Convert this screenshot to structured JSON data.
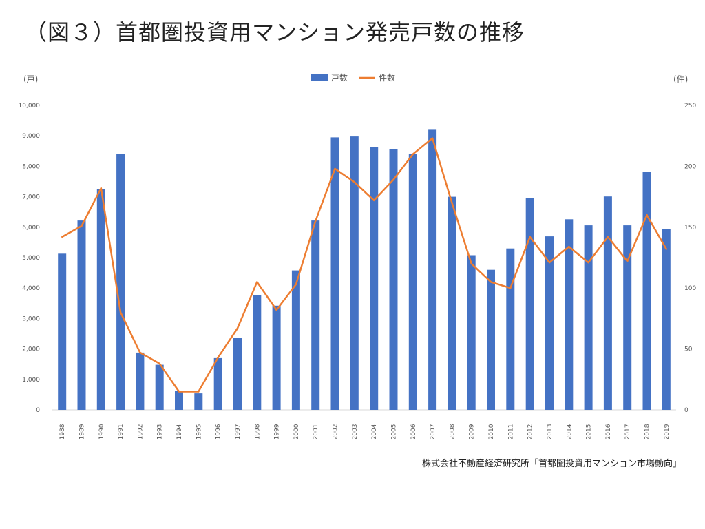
{
  "title": "（図３）首都圏投資用マンション発売戸数の推移",
  "source": "株式会社不動産経済研究所「首都圏投資用マンション市場動向」",
  "colors": {
    "bar": "#4472C4",
    "line": "#ED7D31",
    "axis": "#D9D9D9",
    "text": "#595959"
  },
  "chart_data": {
    "type": "bar",
    "title": "",
    "ylabel_left": "(戸)",
    "ylabel_right": "(件)",
    "ylim_left": [
      0,
      10000
    ],
    "ylim_right": [
      0,
      250
    ],
    "yticks_left": [
      "0",
      "1,000",
      "2,000",
      "3,000",
      "4,000",
      "5,000",
      "6,000",
      "7,000",
      "8,000",
      "9,000",
      "10,000"
    ],
    "yticks_right": [
      "0",
      "50",
      "100",
      "150",
      "200",
      "250"
    ],
    "legend_position": "top-center",
    "grid": false,
    "categories": [
      "1988",
      "1989",
      "1990",
      "1991",
      "1992",
      "1993",
      "1994",
      "1995",
      "1996",
      "1997",
      "1998",
      "1999",
      "2000",
      "2001",
      "2002",
      "2003",
      "2004",
      "2005",
      "2006",
      "2007",
      "2008",
      "2009",
      "2010",
      "2011",
      "2012",
      "2013",
      "2014",
      "2015",
      "2016",
      "2017",
      "2018",
      "2019"
    ],
    "series": [
      {
        "name": "戸数",
        "type": "bar",
        "axis": "left",
        "values": [
          5130,
          6220,
          7250,
          8400,
          1880,
          1480,
          620,
          540,
          1700,
          2360,
          3760,
          3420,
          4580,
          6220,
          8950,
          8980,
          8620,
          8560,
          8400,
          9200,
          7000,
          5080,
          4600,
          5300,
          6950,
          5700,
          6260,
          6060,
          7010,
          6060,
          7820,
          5950
        ]
      },
      {
        "name": "件数",
        "type": "line",
        "axis": "right",
        "values": [
          142,
          151,
          182,
          80,
          47,
          38,
          15,
          15,
          43,
          67,
          105,
          82,
          103,
          155,
          198,
          187,
          172,
          189,
          210,
          223,
          170,
          120,
          105,
          100,
          142,
          121,
          134,
          121,
          142,
          122,
          160,
          132
        ]
      }
    ]
  }
}
